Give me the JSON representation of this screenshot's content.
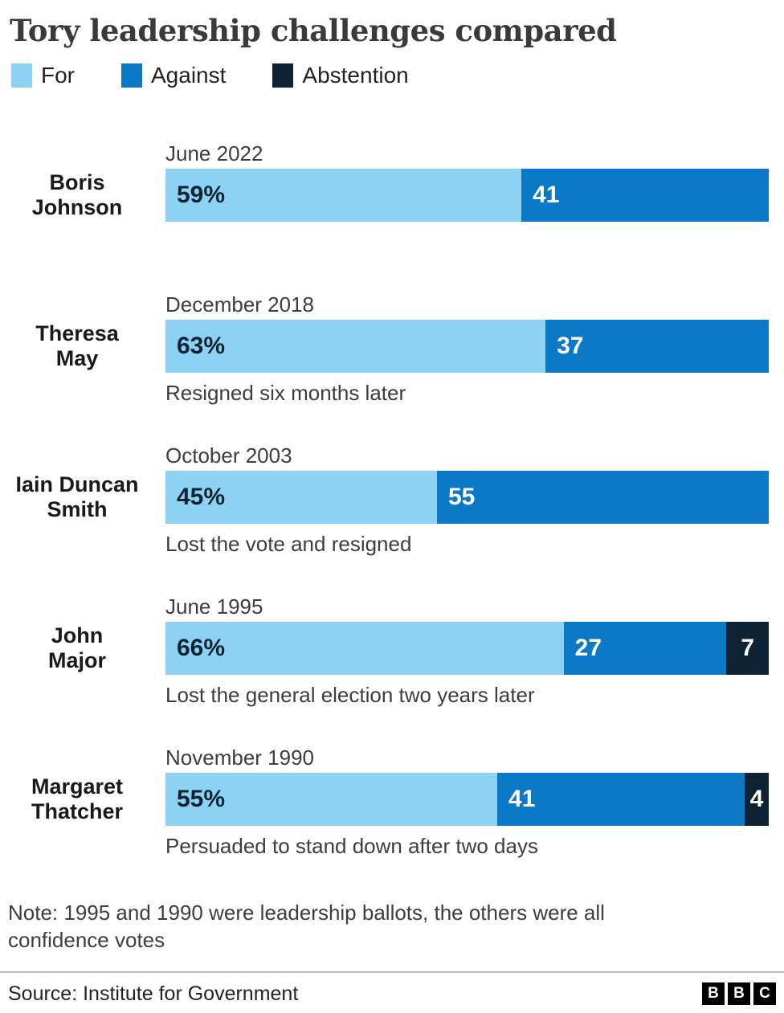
{
  "title": "Tory leadership challenges compared",
  "legend": {
    "items": [
      {
        "key": "for",
        "label": "For"
      },
      {
        "key": "against",
        "label": "Against"
      },
      {
        "key": "abstention",
        "label": "Abstention"
      }
    ]
  },
  "colors": {
    "for": "#8ED2F3",
    "against": "#0C79C6",
    "abstention": "#0D2333",
    "for_text": "#0A2333",
    "against_text": "#FFFFFF",
    "abstention_text": "#FFFFFF"
  },
  "rows": [
    {
      "name": "Boris Johnson",
      "name_lines": [
        "Boris",
        "Johnson"
      ],
      "date": "June 2022",
      "caption": "",
      "segments": [
        {
          "key": "for",
          "value": 59,
          "label": "59%"
        },
        {
          "key": "against",
          "value": 41,
          "label": "41"
        }
      ]
    },
    {
      "name": "Theresa May",
      "name_lines": [
        "Theresa",
        "May"
      ],
      "date": "December 2018",
      "caption": "Resigned six months later",
      "segments": [
        {
          "key": "for",
          "value": 63,
          "label": "63%"
        },
        {
          "key": "against",
          "value": 37,
          "label": "37"
        }
      ]
    },
    {
      "name": "Iain Duncan Smith",
      "name_lines": [
        "Iain Duncan",
        "Smith"
      ],
      "date": "October 2003",
      "caption": "Lost the vote and resigned",
      "segments": [
        {
          "key": "for",
          "value": 45,
          "label": "45%"
        },
        {
          "key": "against",
          "value": 55,
          "label": "55"
        }
      ]
    },
    {
      "name": "John Major",
      "name_lines": [
        "John",
        "Major"
      ],
      "date": "June 1995",
      "caption": "Lost the general election two years later",
      "segments": [
        {
          "key": "for",
          "value": 66,
          "label": "66%"
        },
        {
          "key": "against",
          "value": 27,
          "label": "27"
        },
        {
          "key": "abstention",
          "value": 7,
          "label": "7"
        }
      ]
    },
    {
      "name": "Margaret Thatcher",
      "name_lines": [
        "Margaret",
        "Thatcher"
      ],
      "date": "November 1990",
      "caption": "Persuaded to stand down after two days",
      "segments": [
        {
          "key": "for",
          "value": 55,
          "label": "55%"
        },
        {
          "key": "against",
          "value": 41,
          "label": "41"
        },
        {
          "key": "abstention",
          "value": 4,
          "label": "4"
        }
      ]
    }
  ],
  "note": "Note: 1995 and 1990 were leadership ballots, the others were all confidence votes",
  "source": "Source: Institute for Government",
  "logo_blocks": [
    "B",
    "B",
    "C"
  ],
  "chart_data": {
    "type": "bar",
    "orientation": "horizontal",
    "stacked": true,
    "title": "Tory leadership challenges compared",
    "categories": [
      "Boris Johnson",
      "Theresa May",
      "Iain Duncan Smith",
      "John Major",
      "Margaret Thatcher"
    ],
    "category_dates": [
      "June 2022",
      "December 2018",
      "October 2003",
      "June 1995",
      "November 1990"
    ],
    "series": [
      {
        "name": "For",
        "values": [
          59,
          63,
          45,
          66,
          55
        ]
      },
      {
        "name": "Against",
        "values": [
          41,
          37,
          55,
          27,
          41
        ]
      },
      {
        "name": "Abstention",
        "values": [
          0,
          0,
          0,
          7,
          4
        ]
      }
    ],
    "annotations": [
      "",
      "Resigned six months later",
      "Lost the vote and resigned",
      "Lost the general election two years later",
      "Persuaded to stand down after two days"
    ],
    "value_unit": "percent",
    "xlim": [
      0,
      100
    ],
    "grid": false,
    "legend_position": "top",
    "note": "Note: 1995 and 1990 were leadership ballots, the others were all confidence votes",
    "source": "Source: Institute for Government"
  }
}
